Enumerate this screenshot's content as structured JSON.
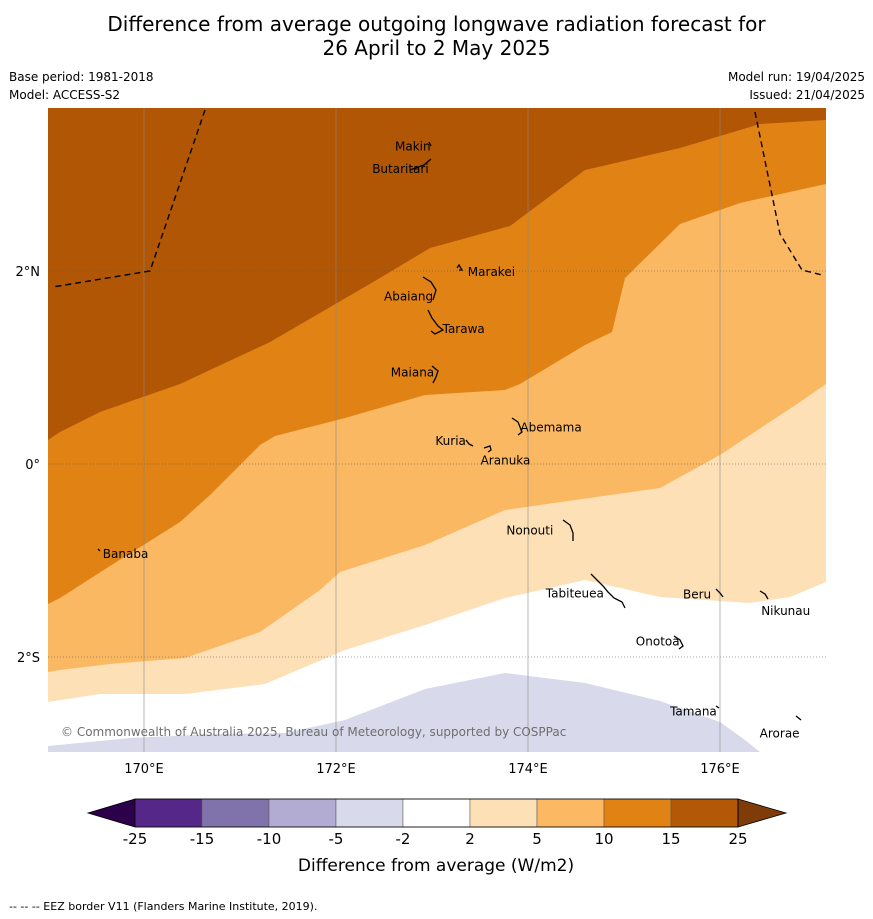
{
  "header": {
    "title_line1": "Difference from average outgoing longwave radiation forecast for",
    "title_line2": "26 April to 2 May 2025",
    "base_period": "Base period: 1981-2018",
    "model": "Model: ACCESS-S2",
    "model_run": "Model run: 19/04/2025",
    "issued": "Issued: 21/04/2025"
  },
  "map": {
    "lon_range": [
      169.0,
      177.1
    ],
    "lat_range": [
      -3.0,
      3.4
    ],
    "lat_ticks": [
      {
        "value": 2,
        "label": "2°N"
      },
      {
        "value": 0,
        "label": "0°"
      },
      {
        "value": -2,
        "label": "2°S"
      }
    ],
    "lon_ticks": [
      {
        "value": 170,
        "label": "170°E"
      },
      {
        "value": 172,
        "label": "172°E"
      },
      {
        "value": 174,
        "label": "174°E"
      },
      {
        "value": 176,
        "label": "176°E"
      }
    ],
    "copyright": "© Commonwealth of Australia 2025, Bureau of Meteorology, supported by COSPPac",
    "islands": [
      {
        "name": "Makin",
        "lon": 173.0,
        "lat": 3.25
      },
      {
        "name": "Butaritari",
        "lon": 172.95,
        "lat": 3.1
      },
      {
        "name": "Marakei",
        "lon": 173.3,
        "lat": 1.95
      },
      {
        "name": "Abaiang",
        "lon": 173.0,
        "lat": 1.8
      },
      {
        "name": "Tarawa",
        "lon": 173.1,
        "lat": 1.4
      },
      {
        "name": "Maiana",
        "lon": 173.05,
        "lat": 0.95
      },
      {
        "name": "Abemama",
        "lon": 173.9,
        "lat": 0.38
      },
      {
        "name": "Kuria",
        "lon": 173.4,
        "lat": 0.22
      },
      {
        "name": "Aranuka",
        "lon": 173.6,
        "lat": 0.17
      },
      {
        "name": "Banaba",
        "lon": 169.55,
        "lat": -0.87
      },
      {
        "name": "Nonouti",
        "lon": 174.4,
        "lat": -0.65
      },
      {
        "name": "Tabiteuea",
        "lon": 174.8,
        "lat": -1.3
      },
      {
        "name": "Beru",
        "lon": 176.0,
        "lat": -1.35
      },
      {
        "name": "Nikunau",
        "lon": 176.45,
        "lat": -1.38
      },
      {
        "name": "Onotoa",
        "lon": 175.55,
        "lat": -1.8
      },
      {
        "name": "Tamana",
        "lon": 175.98,
        "lat": -2.5
      },
      {
        "name": "Arorae",
        "lon": 176.83,
        "lat": -2.65
      }
    ],
    "colors": {
      "gt15": "#b05605",
      "10to15": "#e08214",
      "5to10": "#fbb863",
      "2to5": "#fee0b6",
      "m2to2": "#ffffff",
      "m5tom2": "#d8daeb"
    }
  },
  "colorbar": {
    "label": "Difference from average (W/m2)",
    "ticks": [
      "-25",
      "-15",
      "-10",
      "-5",
      "-2",
      "2",
      "5",
      "10",
      "15",
      "25"
    ],
    "colors": [
      "#2d004b",
      "#542788",
      "#8073ac",
      "#b2abd2",
      "#d8daeb",
      "#ffffff",
      "#fee0b6",
      "#fdb863",
      "#e08214",
      "#b35806",
      "#7f3b08"
    ]
  },
  "footer": {
    "legend_text": "--  --  -- EEZ border V11 (Flanders Marine Institute, 2019)."
  }
}
